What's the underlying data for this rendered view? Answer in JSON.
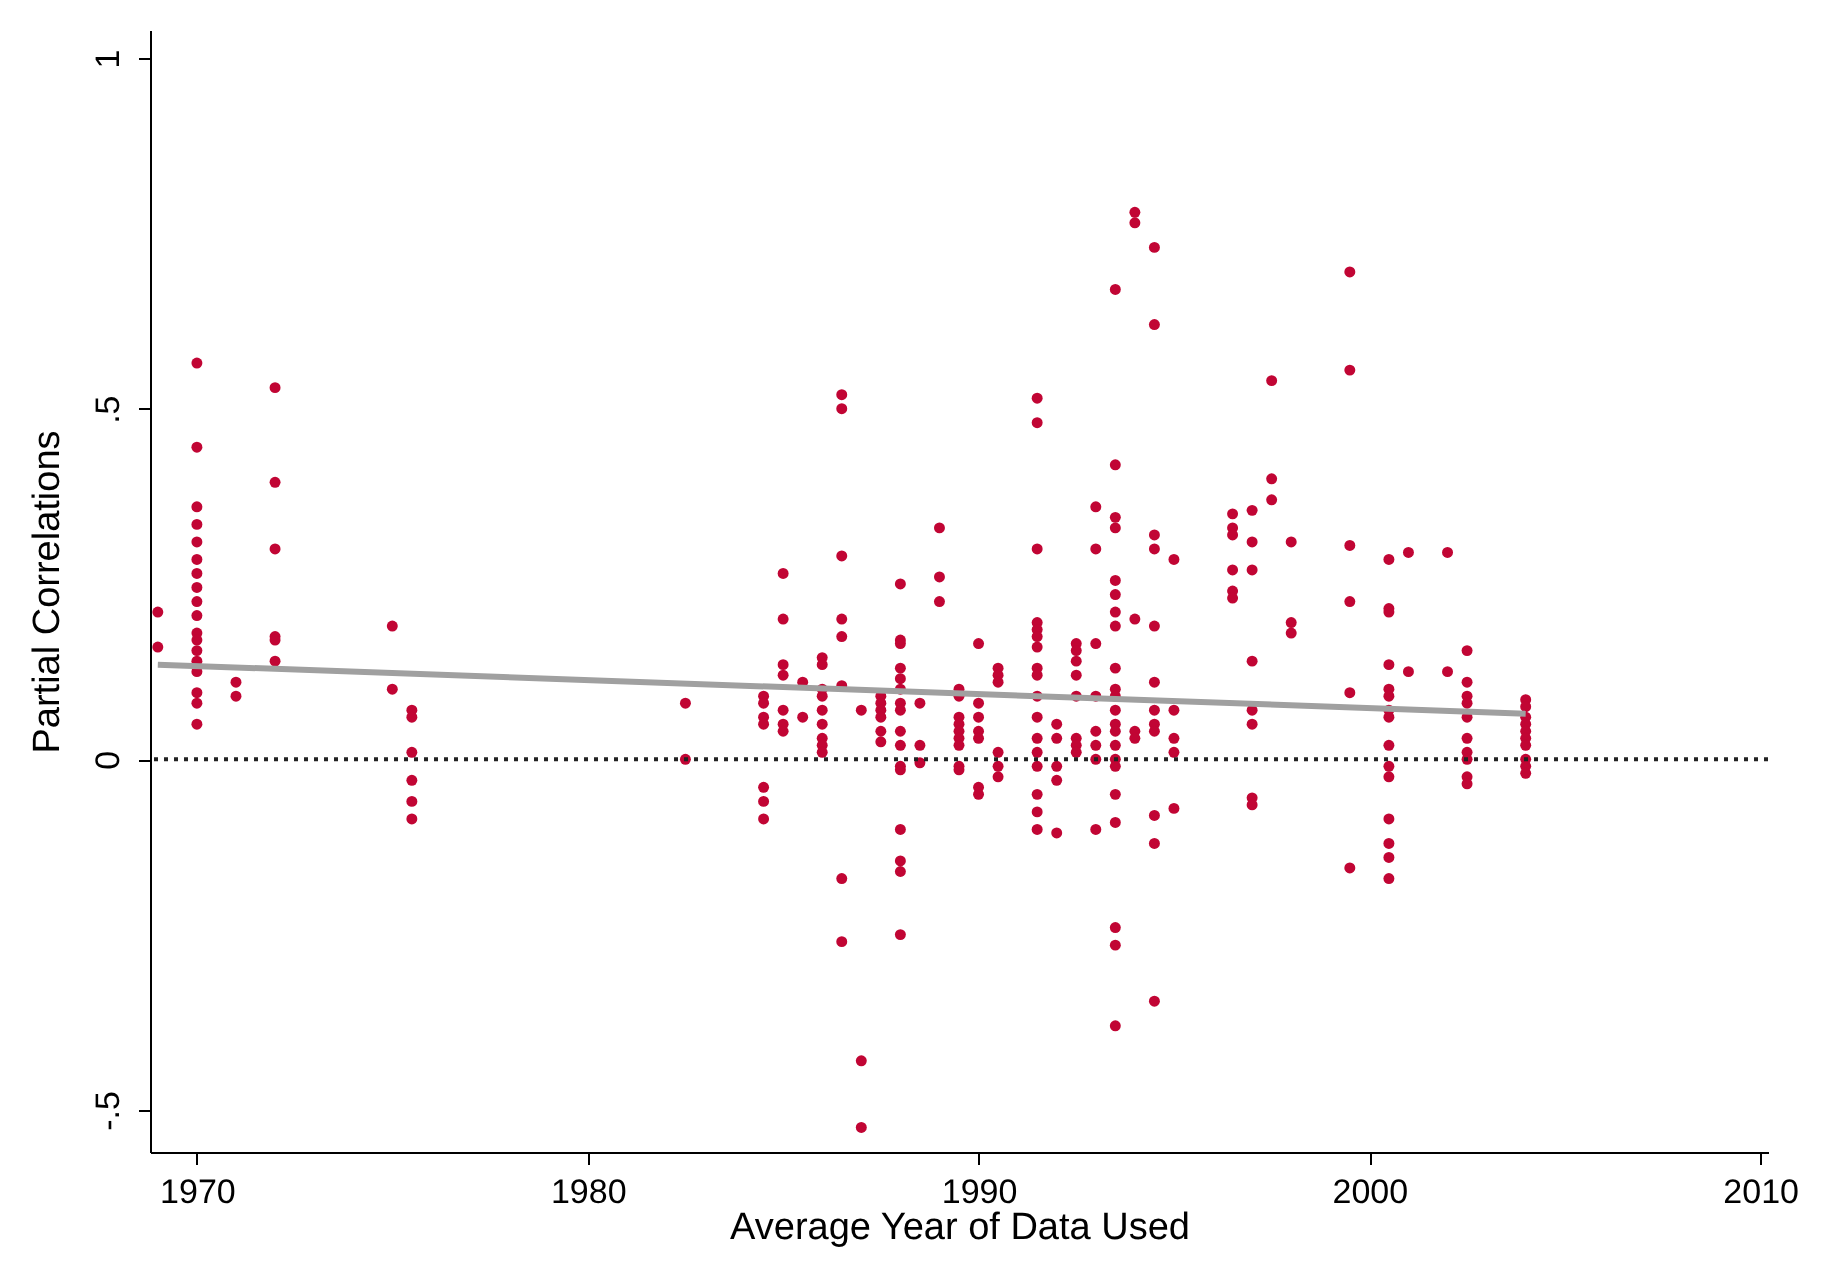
{
  "chart_data": {
    "type": "scatter",
    "xlabel": "Average Year of Data Used",
    "ylabel": "Partial Correlations",
    "xlim": [
      1968.8,
      2010.2
    ],
    "xticks": [
      1970,
      1980,
      1990,
      2000,
      2010
    ],
    "ylim": [
      -0.56,
      1.04
    ],
    "yticks": [
      {
        "value": -0.5,
        "label": "-.5"
      },
      0,
      {
        "value": 0.5,
        "label": ".5"
      },
      1
    ],
    "grid": false,
    "marker": "circle",
    "ref_lines": [
      {
        "axis": "y",
        "value": 0,
        "color": "#222222",
        "line_style": "dotted"
      }
    ],
    "series": [
      {
        "color": "#c10534",
        "x": [
          1969,
          1969,
          1970,
          1970,
          1970,
          1970,
          1970,
          1970,
          1970,
          1970,
          1970,
          1970,
          1970,
          1970,
          1970,
          1970,
          1970,
          1970,
          1970,
          1970,
          1971,
          1971,
          1972,
          1972,
          1972,
          1972,
          1972,
          1972,
          1975,
          1975,
          1975.5,
          1975.5,
          1975.5,
          1975.5,
          1975.5,
          1975.5,
          1982.5,
          1982.5,
          1984.5,
          1984.5,
          1984.5,
          1984.5,
          1984.5,
          1984.5,
          1984.5,
          1985,
          1985,
          1985,
          1985,
          1985,
          1985,
          1985,
          1985.5,
          1985.5,
          1986,
          1986,
          1986,
          1986,
          1986,
          1986,
          1986,
          1986,
          1986,
          1986.5,
          1986.5,
          1986.5,
          1986.5,
          1986.5,
          1986.5,
          1986.5,
          1986.5,
          1987,
          1987,
          1987,
          1987.5,
          1987.5,
          1987.5,
          1987.5,
          1987.5,
          1987.5,
          1988,
          1988,
          1988,
          1988,
          1988,
          1988,
          1988,
          1988,
          1988,
          1988,
          1988,
          1988,
          1988,
          1988,
          1988,
          1988,
          1988.5,
          1988.5,
          1988.5,
          1989,
          1989,
          1989,
          1989.5,
          1989.5,
          1989.5,
          1989.5,
          1989.5,
          1989.5,
          1989.5,
          1989.5,
          1989.5,
          1990,
          1990,
          1990,
          1990,
          1990,
          1990,
          1990,
          1990.5,
          1990.5,
          1990.5,
          1990.5,
          1990.5,
          1990.5,
          1991.5,
          1991.5,
          1991.5,
          1991.5,
          1991.5,
          1991.5,
          1991.5,
          1991.5,
          1991.5,
          1991.5,
          1991.5,
          1991.5,
          1991.5,
          1991.5,
          1991.5,
          1991.5,
          1991.5,
          1992,
          1992,
          1992,
          1992,
          1992,
          1992.5,
          1992.5,
          1992.5,
          1992.5,
          1992.5,
          1992.5,
          1992.5,
          1992.5,
          1993,
          1993,
          1993,
          1993,
          1993,
          1993,
          1993,
          1993,
          1993.5,
          1993.5,
          1993.5,
          1993.5,
          1993.5,
          1993.5,
          1993.5,
          1993.5,
          1993.5,
          1993.5,
          1993.5,
          1993.5,
          1993.5,
          1993.5,
          1993.5,
          1993.5,
          1993.5,
          1993.5,
          1993.5,
          1993.5,
          1993.5,
          1993.5,
          1994,
          1994,
          1994,
          1994,
          1994,
          1994.5,
          1994.5,
          1994.5,
          1994.5,
          1994.5,
          1994.5,
          1994.5,
          1994.5,
          1994.5,
          1994.5,
          1994.5,
          1994.5,
          1995,
          1995,
          1995,
          1995,
          1995,
          1996.5,
          1996.5,
          1996.5,
          1996.5,
          1996.5,
          1996.5,
          1997,
          1997,
          1997,
          1997,
          1997,
          1997,
          1997,
          1997,
          1997.5,
          1997.5,
          1997.5,
          1998,
          1998,
          1998,
          1999.5,
          1999.5,
          1999.5,
          1999.5,
          1999.5,
          1999.5,
          2000.5,
          2000.5,
          2000.5,
          2000.5,
          2000.5,
          2000.5,
          2000.5,
          2000.5,
          2000.5,
          2000.5,
          2000.5,
          2000.5,
          2000.5,
          2000.5,
          2000.5,
          2001,
          2001,
          2002,
          2002,
          2002.5,
          2002.5,
          2002.5,
          2002.5,
          2002.5,
          2002.5,
          2002.5,
          2002.5,
          2002.5,
          2002.5,
          2004,
          2004,
          2004,
          2004,
          2004,
          2004,
          2004,
          2004,
          2004,
          2004
        ],
        "values": [
          0.21,
          0.16,
          0.565,
          0.445,
          0.36,
          0.335,
          0.31,
          0.285,
          0.265,
          0.245,
          0.225,
          0.205,
          0.18,
          0.17,
          0.155,
          0.14,
          0.125,
          0.095,
          0.08,
          0.05,
          0.11,
          0.09,
          0.53,
          0.395,
          0.3,
          0.175,
          0.17,
          0.14,
          0.19,
          0.1,
          0.07,
          0.06,
          0.01,
          -0.03,
          -0.06,
          -0.085,
          0.08,
          0,
          0.09,
          0.08,
          0.06,
          0.05,
          -0.04,
          -0.06,
          -0.085,
          0.265,
          0.2,
          0.135,
          0.12,
          0.07,
          0.05,
          0.04,
          0.11,
          0.06,
          0.145,
          0.135,
          0.1,
          0.09,
          0.07,
          0.05,
          0.03,
          0.02,
          0.01,
          0.52,
          0.5,
          0.29,
          0.2,
          0.175,
          0.105,
          -0.17,
          -0.26,
          0.07,
          -0.43,
          -0.525,
          0.09,
          0.08,
          0.07,
          0.06,
          0.04,
          0.025,
          0.25,
          0.17,
          0.165,
          0.13,
          0.115,
          0.1,
          0.08,
          0.07,
          0.04,
          0.02,
          -0.01,
          -0.015,
          -0.1,
          -0.145,
          -0.16,
          -0.25,
          0.08,
          0.02,
          -0.005,
          0.33,
          0.26,
          0.225,
          0.1,
          0.09,
          0.06,
          0.05,
          0.04,
          0.03,
          0.02,
          -0.01,
          -0.015,
          0.165,
          0.08,
          0.06,
          0.04,
          0.03,
          -0.04,
          -0.05,
          0.13,
          0.12,
          0.11,
          0.01,
          -0.01,
          -0.025,
          0.515,
          0.48,
          0.3,
          0.195,
          0.185,
          0.175,
          0.16,
          0.13,
          0.12,
          0.09,
          0.06,
          0.03,
          0.01,
          -0.01,
          -0.05,
          -0.075,
          -0.1,
          0.05,
          0.03,
          -0.01,
          -0.03,
          -0.105,
          0.165,
          0.155,
          0.14,
          0.12,
          0.09,
          0.03,
          0.02,
          0.01,
          0.36,
          0.3,
          0.165,
          0.09,
          0.04,
          0.02,
          0,
          -0.1,
          0.67,
          0.42,
          0.345,
          0.33,
          0.255,
          0.235,
          0.21,
          0.19,
          0.13,
          0.1,
          0.09,
          0.07,
          0.05,
          0.04,
          0.02,
          0,
          -0.01,
          -0.05,
          -0.09,
          -0.24,
          -0.265,
          -0.38,
          0.78,
          0.765,
          0.2,
          0.04,
          0.03,
          0.73,
          0.62,
          0.32,
          0.3,
          0.19,
          0.11,
          0.07,
          0.05,
          0.04,
          -0.08,
          -0.12,
          -0.345,
          0.285,
          0.07,
          0.03,
          0.01,
          -0.07,
          0.35,
          0.33,
          0.32,
          0.27,
          0.24,
          0.23,
          0.355,
          0.31,
          0.27,
          0.14,
          0.07,
          0.05,
          -0.055,
          -0.065,
          0.54,
          0.4,
          0.37,
          0.31,
          0.195,
          0.18,
          0.695,
          0.555,
          0.305,
          0.225,
          0.095,
          -0.155,
          0.285,
          0.215,
          0.21,
          0.135,
          0.1,
          0.09,
          0.07,
          0.06,
          0.02,
          -0.01,
          -0.025,
          -0.085,
          -0.12,
          -0.14,
          -0.17,
          0.295,
          0.125,
          0.295,
          0.125,
          0.155,
          0.11,
          0.09,
          0.08,
          0.06,
          0.03,
          0.01,
          0,
          -0.025,
          -0.035,
          0.085,
          0.075,
          0.06,
          0.05,
          0.04,
          0.03,
          0.02,
          0,
          -0.01,
          -0.02
        ]
      },
      {
        "type": "line",
        "color": "#a0a0a0",
        "marker": "none",
        "x": [
          1969,
          2004
        ],
        "values": [
          0.135,
          0.065
        ]
      }
    ]
  }
}
